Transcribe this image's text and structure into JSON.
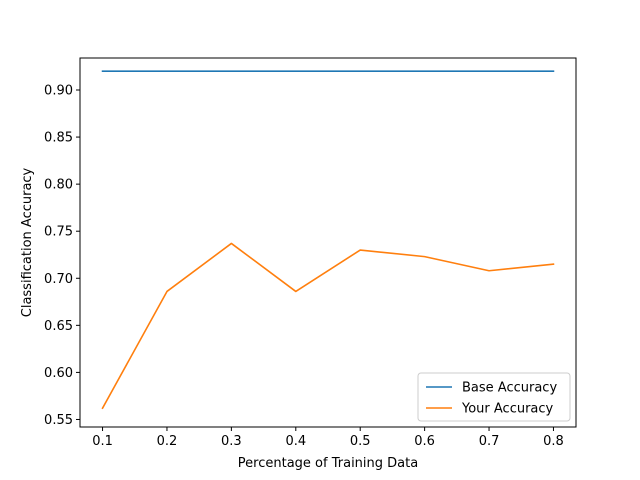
{
  "chart_data": {
    "type": "line",
    "title": "",
    "xlabel": "Percentage of Training Data",
    "ylabel": "Classification Accuracy",
    "x": [
      0.1,
      0.2,
      0.3,
      0.4,
      0.5,
      0.6,
      0.7,
      0.8
    ],
    "xlim": [
      0.065,
      0.835
    ],
    "ylim": [
      0.542,
      0.934
    ],
    "xticks": [
      "0.1",
      "0.2",
      "0.3",
      "0.4",
      "0.5",
      "0.6",
      "0.7",
      "0.8"
    ],
    "yticks": [
      "0.55",
      "0.60",
      "0.65",
      "0.70",
      "0.75",
      "0.80",
      "0.85",
      "0.90"
    ],
    "grid": false,
    "legend_position": "lower-right",
    "series": [
      {
        "name": "Base Accuracy",
        "color": "#1f77b4",
        "values": [
          0.92,
          0.92,
          0.92,
          0.92,
          0.92,
          0.92,
          0.92,
          0.92
        ]
      },
      {
        "name": "Your Accuracy",
        "color": "#ff7f0e",
        "values": [
          0.562,
          0.686,
          0.737,
          0.686,
          0.73,
          0.723,
          0.708,
          0.715
        ]
      }
    ]
  }
}
